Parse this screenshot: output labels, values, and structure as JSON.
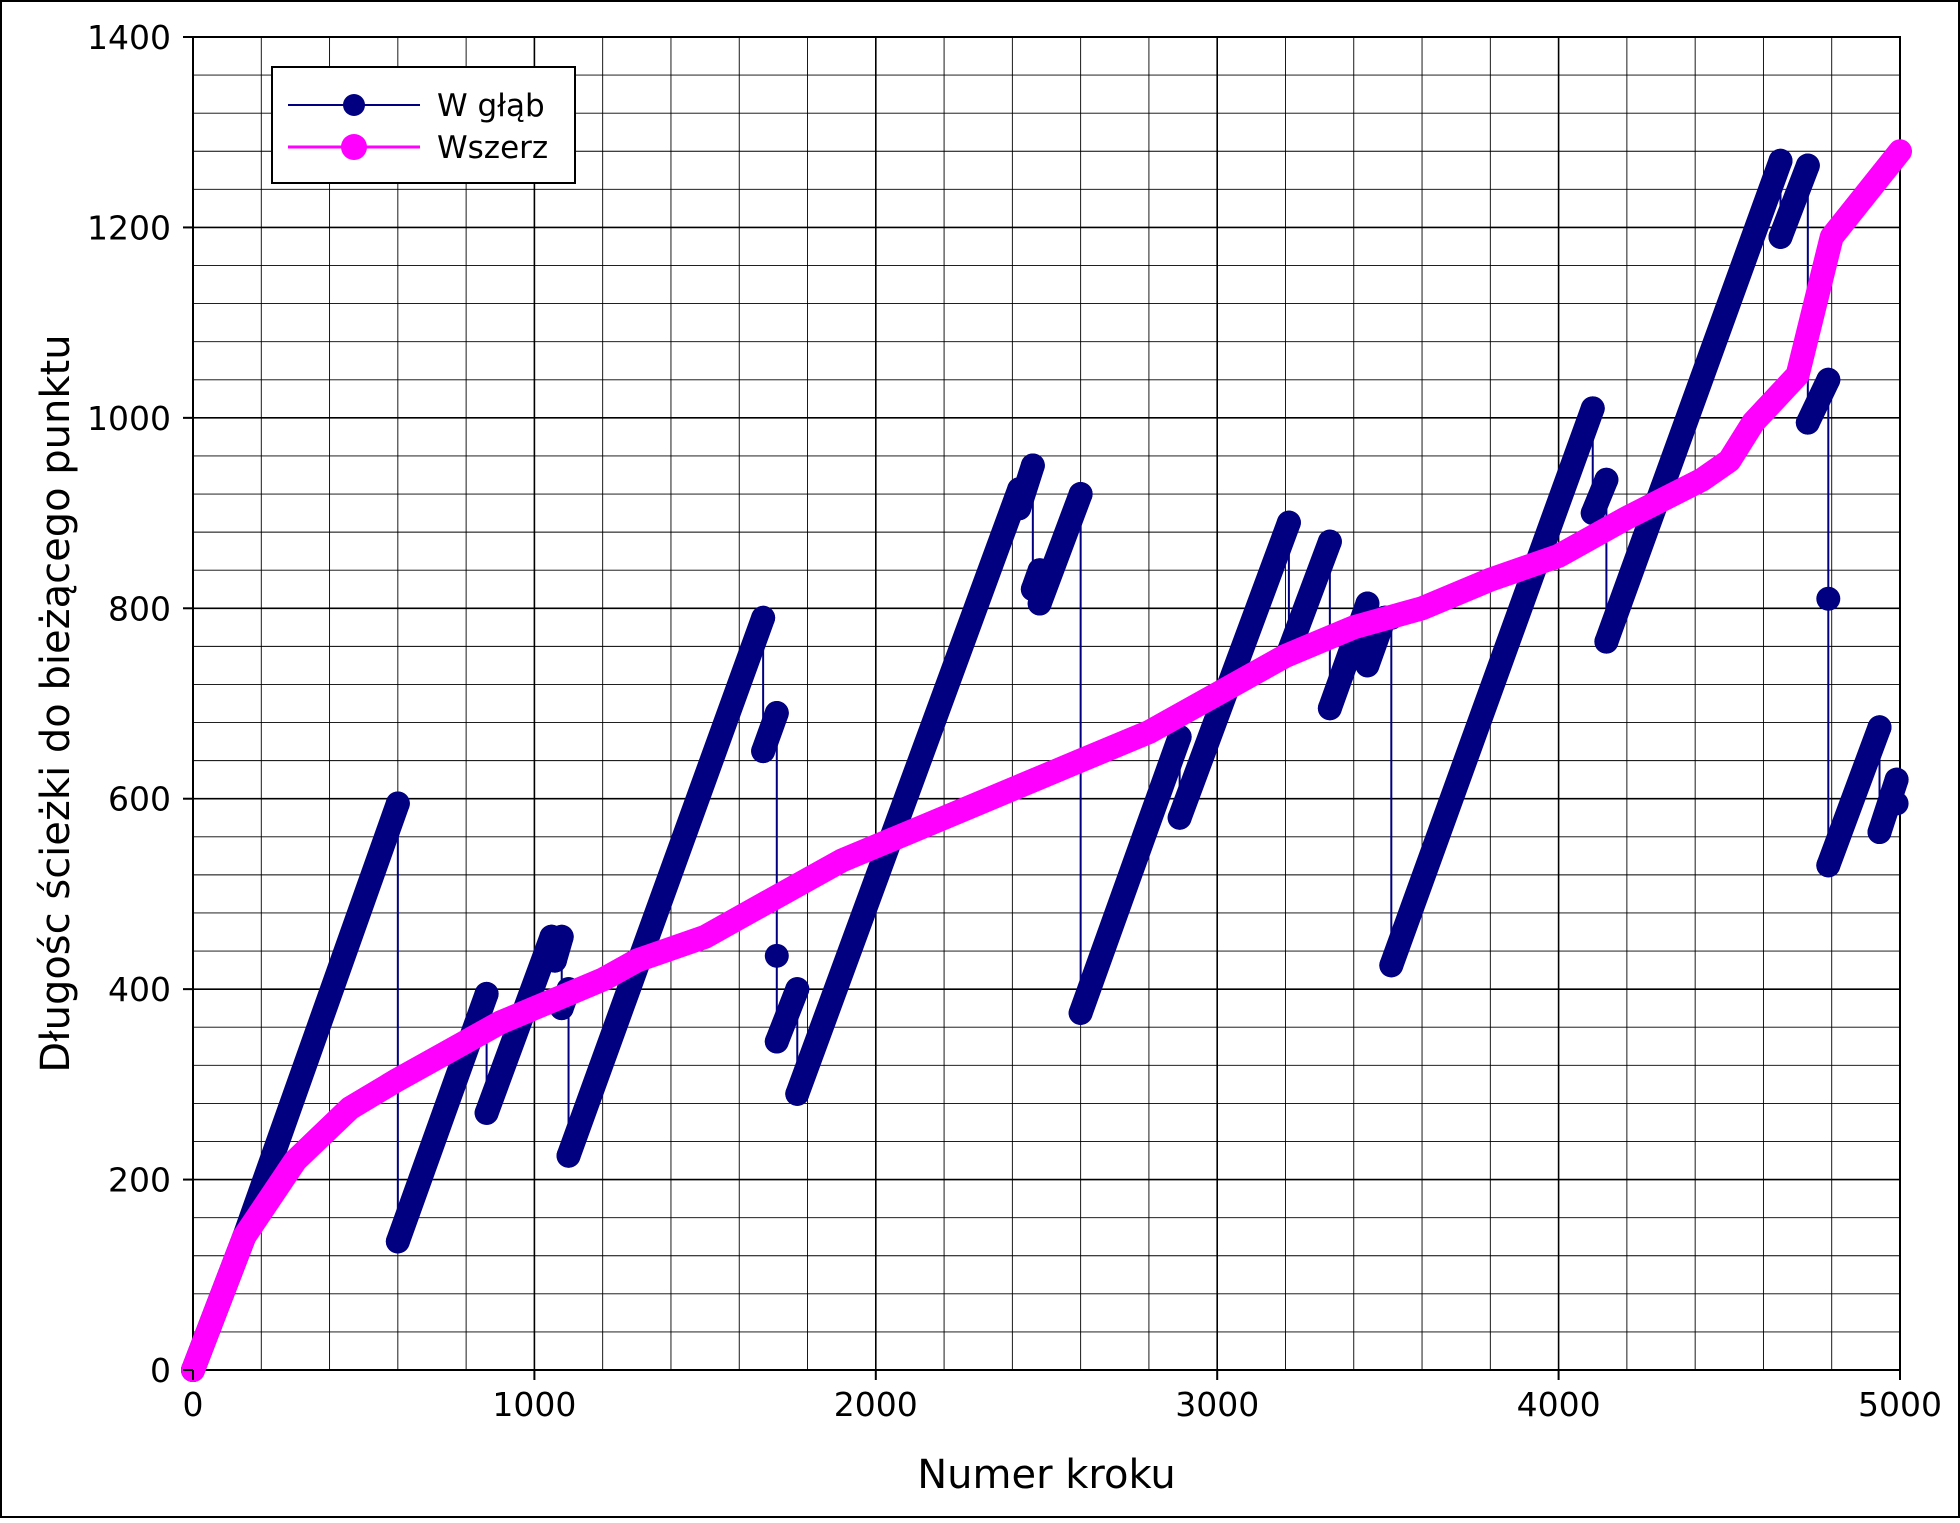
{
  "chart_data": {
    "type": "line",
    "title": "",
    "xlabel": "Numer kroku",
    "ylabel": "Długośc ścieżki do bieżącego punktu",
    "xlim": [
      0,
      5000
    ],
    "ylim": [
      0,
      1400
    ],
    "x_ticks": [
      "0",
      "1000",
      "2000",
      "3000",
      "4000",
      "5000"
    ],
    "y_ticks": [
      "0",
      "200",
      "400",
      "600",
      "800",
      "1000",
      "1200",
      "1400"
    ],
    "grid": "major and minor",
    "legend_position": "top-left",
    "series": [
      {
        "name": "W głąb",
        "color": "#000080",
        "points": [
          [
            0,
            0
          ],
          [
            150,
            140
          ],
          [
            600,
            595
          ],
          [
            600,
            135
          ],
          [
            860,
            395
          ],
          [
            860,
            270
          ],
          [
            1050,
            455
          ],
          [
            1060,
            430
          ],
          [
            1080,
            455
          ],
          [
            1080,
            380
          ],
          [
            1100,
            400
          ],
          [
            1100,
            225
          ],
          [
            1670,
            790
          ],
          [
            1670,
            650
          ],
          [
            1710,
            690
          ],
          [
            1710,
            435
          ],
          [
            1710,
            345
          ],
          [
            1770,
            400
          ],
          [
            1770,
            290
          ],
          [
            2420,
            925
          ],
          [
            2420,
            905
          ],
          [
            2460,
            950
          ],
          [
            2460,
            820
          ],
          [
            2480,
            840
          ],
          [
            2480,
            805
          ],
          [
            2600,
            920
          ],
          [
            2600,
            375
          ],
          [
            2890,
            665
          ],
          [
            2890,
            580
          ],
          [
            3210,
            890
          ],
          [
            3210,
            755
          ],
          [
            3330,
            870
          ],
          [
            3330,
            695
          ],
          [
            3440,
            805
          ],
          [
            3440,
            740
          ],
          [
            3490,
            790
          ],
          [
            3510,
            790
          ],
          [
            3510,
            425
          ],
          [
            4100,
            1010
          ],
          [
            4100,
            900
          ],
          [
            4140,
            935
          ],
          [
            4140,
            765
          ],
          [
            4650,
            1270
          ],
          [
            4650,
            1190
          ],
          [
            4730,
            1265
          ],
          [
            4730,
            995
          ],
          [
            4790,
            1040
          ],
          [
            4790,
            810
          ],
          [
            4790,
            530
          ],
          [
            4940,
            675
          ],
          [
            4940,
            565
          ],
          [
            4990,
            620
          ],
          [
            4990,
            595
          ]
        ]
      },
      {
        "name": "Wszerz",
        "color": "#ff00ff",
        "points": [
          [
            0,
            0
          ],
          [
            150,
            140
          ],
          [
            300,
            220
          ],
          [
            460,
            275
          ],
          [
            600,
            305
          ],
          [
            700,
            325
          ],
          [
            900,
            365
          ],
          [
            1100,
            395
          ],
          [
            1200,
            410
          ],
          [
            1300,
            430
          ],
          [
            1500,
            455
          ],
          [
            1600,
            475
          ],
          [
            1800,
            515
          ],
          [
            1900,
            535
          ],
          [
            2200,
            580
          ],
          [
            2400,
            610
          ],
          [
            2600,
            640
          ],
          [
            2800,
            670
          ],
          [
            3000,
            710
          ],
          [
            3200,
            750
          ],
          [
            3400,
            780
          ],
          [
            3600,
            800
          ],
          [
            3800,
            830
          ],
          [
            4000,
            855
          ],
          [
            4200,
            895
          ],
          [
            4420,
            935
          ],
          [
            4500,
            955
          ],
          [
            4570,
            995
          ],
          [
            4700,
            1045
          ],
          [
            4800,
            1190
          ],
          [
            5000,
            1280
          ]
        ]
      }
    ]
  }
}
